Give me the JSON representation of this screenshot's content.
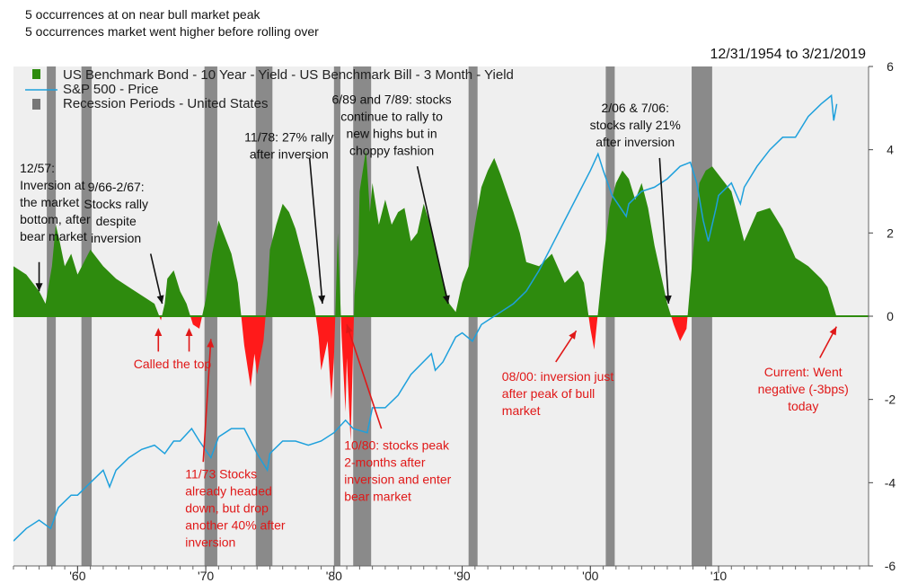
{
  "notes": [
    "5 occurrences at on near bull market peak",
    "5 occurrences market went higher before rolling over"
  ],
  "date_range": "12/31/1954 to 3/21/2019",
  "colors": {
    "spread_positive": "#2e8b0e",
    "spread_negative": "#ff1a1a",
    "sp500": "#1ea0dc",
    "recession": "#8a8a8a",
    "plot_bg": "#efefef",
    "annotation_black": "#111111",
    "annotation_red": "#e01818"
  },
  "chart_data": {
    "type": "area",
    "series": [
      {
        "name": "US Benchmark Bond - 10 Year - Yield - US Benchmark Bill - 3 Month - Yield",
        "kind": "area",
        "x": [
          1955.0,
          1956.0,
          1957.0,
          1957.5,
          1958.0,
          1958.3,
          1958.6,
          1959.0,
          1959.5,
          1960.0,
          1960.5,
          1961.0,
          1962.0,
          1963.0,
          1964.0,
          1965.0,
          1966.0,
          1966.5,
          1966.8,
          1967.0,
          1967.5,
          1968.0,
          1968.5,
          1969.0,
          1969.5,
          1970.0,
          1970.5,
          1971.0,
          1971.5,
          1972.0,
          1972.5,
          1973.0,
          1973.5,
          1973.8,
          1974.0,
          1974.5,
          1974.8,
          1975.0,
          1975.5,
          1976.0,
          1976.5,
          1977.0,
          1977.5,
          1978.0,
          1978.5,
          1978.8,
          1979.0,
          1979.5,
          1979.8,
          1980.0,
          1980.3,
          1980.6,
          1980.9,
          1981.0,
          1981.3,
          1981.6,
          1981.9,
          1982.0,
          1982.5,
          1982.8,
          1983.0,
          1983.5,
          1984.0,
          1984.5,
          1985.0,
          1985.5,
          1986.0,
          1986.5,
          1987.0,
          1987.5,
          1988.0,
          1988.5,
          1989.0,
          1989.5,
          1990.0,
          1990.5,
          1991.0,
          1991.5,
          1992.0,
          1992.5,
          1993.0,
          1994.0,
          1994.5,
          1995.0,
          1996.0,
          1997.0,
          1998.0,
          1999.0,
          1999.5,
          2000.0,
          2000.3,
          2000.6,
          2001.0,
          2001.5,
          2002.0,
          2002.5,
          2003.0,
          2003.5,
          2004.0,
          2004.5,
          2005.0,
          2005.5,
          2006.0,
          2006.5,
          2007.0,
          2007.5,
          2008.0,
          2008.5,
          2009.0,
          2009.5,
          2010.0,
          2011.0,
          2012.0,
          2013.0,
          2014.0,
          2015.0,
          2016.0,
          2017.0,
          2018.0,
          2018.5,
          2019.0,
          2019.22
        ],
        "values": [
          1.2,
          1.0,
          0.6,
          0.3,
          1.2,
          2.2,
          1.8,
          1.2,
          1.5,
          1.0,
          1.3,
          1.6,
          1.2,
          0.9,
          0.7,
          0.5,
          0.3,
          -0.1,
          0.3,
          0.9,
          1.1,
          0.6,
          0.3,
          -0.2,
          -0.3,
          0.4,
          1.5,
          2.3,
          1.9,
          1.5,
          0.8,
          -0.7,
          -1.7,
          -0.9,
          -1.4,
          -0.6,
          0.5,
          1.6,
          2.2,
          2.7,
          2.5,
          2.1,
          1.5,
          0.9,
          0.2,
          -0.5,
          -1.3,
          -0.6,
          -2.0,
          -1.0,
          2.0,
          -0.5,
          -2.3,
          -1.0,
          -3.0,
          0.5,
          1.5,
          3.0,
          4.0,
          2.5,
          3.2,
          2.2,
          2.8,
          2.2,
          2.5,
          2.6,
          1.8,
          2.0,
          2.7,
          2.2,
          1.6,
          0.9,
          0.3,
          0.1,
          0.8,
          1.2,
          2.2,
          3.1,
          3.5,
          3.8,
          3.4,
          2.5,
          2.0,
          1.3,
          1.2,
          1.5,
          0.8,
          1.1,
          0.8,
          -0.3,
          -0.8,
          0.1,
          1.3,
          2.6,
          3.2,
          3.5,
          3.3,
          2.8,
          3.2,
          2.6,
          1.7,
          1.0,
          0.3,
          -0.2,
          -0.6,
          -0.3,
          1.5,
          3.2,
          3.5,
          3.6,
          3.4,
          3.0,
          1.8,
          2.5,
          2.6,
          2.1,
          1.4,
          1.2,
          0.9,
          0.7,
          0.2,
          -0.03
        ],
        "axis": "right",
        "unit": "%"
      },
      {
        "name": "S&P 500 - Price",
        "kind": "line",
        "x": [
          1955.0,
          1956.0,
          1957.0,
          1957.9,
          1958.5,
          1959.5,
          1960.0,
          1961.0,
          1962.0,
          1962.5,
          1963.0,
          1964.0,
          1965.0,
          1966.0,
          1966.8,
          1967.5,
          1968.0,
          1968.9,
          1969.5,
          1970.4,
          1971.0,
          1972.0,
          1973.0,
          1974.0,
          1974.8,
          1975.0,
          1976.0,
          1977.0,
          1978.0,
          1979.0,
          1980.0,
          1980.9,
          1981.5,
          1982.6,
          1983.0,
          1984.0,
          1985.0,
          1986.0,
          1987.6,
          1987.9,
          1988.5,
          1989.5,
          1990.0,
          1990.8,
          1991.5,
          1992.0,
          1993.0,
          1994.0,
          1995.0,
          1996.0,
          1997.0,
          1998.0,
          1999.0,
          2000.0,
          2000.6,
          2001.0,
          2001.7,
          2002.8,
          2003.0,
          2004.0,
          2005.0,
          2006.0,
          2007.0,
          2007.8,
          2008.3,
          2008.8,
          2009.2,
          2009.8,
          2010.0,
          2011.0,
          2011.7,
          2012.0,
          2013.0,
          2014.0,
          2015.0,
          2016.0,
          2017.0,
          2018.0,
          2018.8,
          2018.98,
          2019.22
        ],
        "values": [
          -5.4,
          -5.1,
          -4.9,
          -5.1,
          -4.6,
          -4.3,
          -4.3,
          -4.0,
          -3.7,
          -4.1,
          -3.7,
          -3.4,
          -3.2,
          -3.1,
          -3.3,
          -3.0,
          -3.0,
          -2.7,
          -3.0,
          -3.4,
          -2.9,
          -2.7,
          -2.7,
          -3.3,
          -3.7,
          -3.3,
          -3.0,
          -3.0,
          -3.1,
          -3.0,
          -2.8,
          -2.5,
          -2.7,
          -2.8,
          -2.2,
          -2.2,
          -1.9,
          -1.4,
          -0.9,
          -1.3,
          -1.1,
          -0.5,
          -0.4,
          -0.6,
          -0.2,
          -0.1,
          0.1,
          0.3,
          0.6,
          1.1,
          1.7,
          2.3,
          2.9,
          3.5,
          3.9,
          3.5,
          2.9,
          2.4,
          2.7,
          3.0,
          3.1,
          3.3,
          3.6,
          3.7,
          3.2,
          2.3,
          1.8,
          2.6,
          2.9,
          3.2,
          2.7,
          3.1,
          3.6,
          4.0,
          4.3,
          4.3,
          4.8,
          5.1,
          5.3,
          4.7,
          5.1
        ],
        "axis": "left"
      }
    ],
    "recessions": [
      [
        1957.6,
        1958.3
      ],
      [
        1960.3,
        1961.1
      ],
      [
        1969.9,
        1970.9
      ],
      [
        1973.9,
        1975.2
      ],
      [
        1980.0,
        1980.5
      ],
      [
        1981.5,
        1982.9
      ],
      [
        1990.5,
        1991.2
      ],
      [
        2001.2,
        2001.9
      ],
      [
        2007.9,
        2009.5
      ]
    ],
    "legend": [
      "US Benchmark Bond - 10 Year - Yield - US Benchmark Bill - 3 Month - Yield",
      "S&P 500 - Price",
      "Recession Periods - United States"
    ],
    "legend_placement": "top-left",
    "xlim": [
      1955.0,
      2021.7
    ],
    "ylim": [
      -6,
      6
    ],
    "x_ticks": [
      {
        "value": 1960,
        "label": "'60"
      },
      {
        "value": 1970,
        "label": "'70"
      },
      {
        "value": 1980,
        "label": "'80"
      },
      {
        "value": 1990,
        "label": "'90"
      },
      {
        "value": 2000,
        "label": "'00"
      },
      {
        "value": 2010,
        "label": "'10"
      }
    ],
    "y_ticks": [
      6,
      4,
      2,
      0,
      -2,
      -4,
      -6
    ],
    "annotations": [
      {
        "lines": [
          "12/57:",
          "Inversion at",
          "the market",
          "bottom, after",
          "bear market"
        ],
        "color": "black",
        "align": "start",
        "x": 1955.5,
        "y": 3.45,
        "arrow": [
          [
            1957.0,
            1.3
          ],
          [
            1957.0,
            0.6
          ]
        ]
      },
      {
        "lines": [
          "9/66-2/67:",
          "Stocks rally",
          "despite",
          "inversion"
        ],
        "color": "black",
        "align": "middle",
        "x": 1963.0,
        "y": 3.0,
        "arrow": [
          [
            1965.7,
            1.5
          ],
          [
            1966.6,
            0.3
          ]
        ]
      },
      {
        "lines": [
          "11/78: 27% rally",
          "after inversion"
        ],
        "color": "black",
        "align": "middle",
        "x": 1976.5,
        "y": 4.2,
        "arrow": [
          [
            1978.1,
            3.8
          ],
          [
            1979.1,
            0.3
          ]
        ]
      },
      {
        "lines": [
          "6/89 and 7/89: stocks",
          "continue to rally to",
          "new highs but in",
          "choppy fashion"
        ],
        "color": "black",
        "align": "middle",
        "x": 1984.5,
        "y": 5.1,
        "arrow": [
          [
            1986.5,
            3.6
          ],
          [
            1988.9,
            0.3
          ]
        ]
      },
      {
        "lines": [
          "2/06 & 7/06:",
          "stocks rally 21%",
          "after inversion"
        ],
        "color": "black",
        "align": "middle",
        "x": 2003.5,
        "y": 4.9,
        "arrow": [
          [
            2005.4,
            3.8
          ],
          [
            2006.1,
            0.3
          ]
        ]
      },
      {
        "lines": [
          "Called the top"
        ],
        "color": "red",
        "align": "middle",
        "x": 1967.4,
        "y": -1.25,
        "arrow": null
      },
      {
        "lines": [
          "11/73 Stocks",
          "already headed",
          "down, but drop",
          "another 40% after",
          "inversion"
        ],
        "color": "red",
        "align": "start",
        "x": 1968.4,
        "y": -3.9,
        "arrow": [
          [
            1969.8,
            -3.5
          ],
          [
            1970.4,
            -0.55
          ]
        ]
      },
      {
        "lines": [
          "10/80: stocks peak",
          "2-months after",
          "inversion and enter",
          "bear market"
        ],
        "color": "red",
        "align": "start",
        "x": 1980.8,
        "y": -3.2,
        "arrow": [
          [
            1983.7,
            -2.7
          ],
          [
            1981.0,
            -0.2
          ]
        ]
      },
      {
        "lines": [
          "08/00: inversion just",
          "after peak of bull",
          "market"
        ],
        "color": "red",
        "align": "start",
        "x": 1993.1,
        "y": -1.55,
        "arrow": [
          [
            1997.3,
            -1.1
          ],
          [
            1998.9,
            -0.35
          ]
        ]
      },
      {
        "lines": [
          "Current: Went",
          "negative (-3bps)",
          "today"
        ],
        "color": "red",
        "align": "middle",
        "x": 2016.6,
        "y": -1.45,
        "arrow": [
          [
            2017.9,
            -1.0
          ],
          [
            2019.2,
            -0.25
          ]
        ]
      }
    ]
  }
}
